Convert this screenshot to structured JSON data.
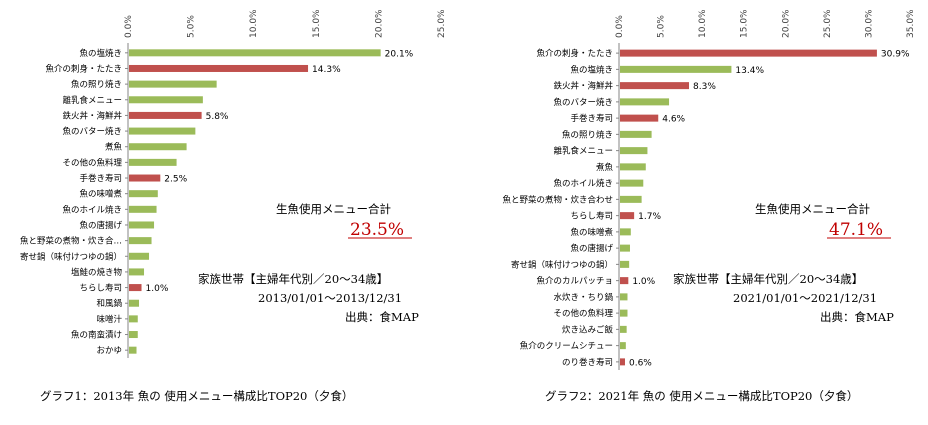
{
  "chart_data": [
    {
      "type": "bar",
      "orientation": "horizontal",
      "title": "グラフ1：2013年 魚の 使用メニュー構成比TOP20（夕食）",
      "xlim": [
        0,
        25
      ],
      "xticks": [
        "0.0%",
        "5.0%",
        "10.0%",
        "15.0%",
        "20.0%",
        "25.0%"
      ],
      "categories": [
        "魚の塩焼き",
        "魚介の刺身・たたき",
        "魚の照り焼き",
        "離乳食メニュー",
        "鉄火丼・海鮮丼",
        "魚のバター焼き",
        "煮魚",
        "その他の魚料理",
        "手巻き寿司",
        "魚の味噌煮",
        "魚のホイル焼き",
        "魚の唐揚げ",
        "魚と野菜の煮物・炊き合…",
        "寄せ鍋（味付けつゆの鍋）",
        "塩鮭の焼き物",
        "ちらし寿司",
        "和風鍋",
        "味噌汁",
        "魚の南蛮漬け",
        "おかゆ"
      ],
      "values": [
        20.1,
        14.3,
        7.0,
        5.9,
        5.8,
        5.3,
        4.6,
        3.8,
        2.5,
        2.3,
        2.2,
        2.0,
        1.8,
        1.6,
        1.2,
        1.0,
        0.8,
        0.7,
        0.7,
        0.6
      ],
      "highlight": [
        false,
        true,
        false,
        false,
        true,
        false,
        false,
        false,
        true,
        false,
        false,
        false,
        false,
        false,
        false,
        true,
        false,
        false,
        false,
        false
      ],
      "data_labels": [
        "20.1%",
        "14.3%",
        "",
        "",
        "5.8%",
        "",
        "",
        "",
        "2.5%",
        "",
        "",
        "",
        "",
        "",
        "",
        "1.0%",
        "",
        "",
        "",
        ""
      ],
      "annotation": {
        "total_label": "生魚使用メニュー合計",
        "total_value": "23.5%",
        "group": "家族世帯【主婦年代別／20～34歳】",
        "period": "2013/01/01～2013/12/31",
        "source": "出典：食MAP"
      },
      "colors": {
        "normal": "#9bbb59",
        "highlight": "#c0504d"
      }
    },
    {
      "type": "bar",
      "orientation": "horizontal",
      "title": "グラフ2：2021年 魚の 使用メニュー構成比TOP20（夕食）",
      "xlim": [
        0,
        35
      ],
      "xticks": [
        "0.0%",
        "5.0%",
        "10.0%",
        "15.0%",
        "20.0%",
        "25.0%",
        "30.0%",
        "35.0%"
      ],
      "categories": [
        "魚介の刺身・たたき",
        "魚の塩焼き",
        "鉄火丼・海鮮丼",
        "魚のバター焼き",
        "手巻き寿司",
        "魚の照り焼き",
        "離乳食メニュー",
        "煮魚",
        "魚のホイル焼き",
        "魚と野菜の煮物・炊き合わせ",
        "ちらし寿司",
        "魚の味噌煮",
        "魚の唐揚げ",
        "寄せ鍋（味付けつゆの鍋）",
        "魚介のカルパッチョ",
        "水炊き・ちり鍋",
        "その他の魚料理",
        "炊き込みご飯",
        "魚介のクリームシチュー",
        "のり巻き寿司"
      ],
      "values": [
        30.9,
        13.4,
        8.3,
        5.9,
        4.6,
        3.8,
        3.3,
        3.1,
        2.8,
        2.6,
        1.7,
        1.3,
        1.2,
        1.1,
        1.0,
        0.9,
        0.9,
        0.8,
        0.7,
        0.6
      ],
      "highlight": [
        true,
        false,
        true,
        false,
        true,
        false,
        false,
        false,
        false,
        false,
        true,
        false,
        false,
        false,
        true,
        false,
        false,
        false,
        false,
        true
      ],
      "data_labels": [
        "30.9%",
        "13.4%",
        "8.3%",
        "",
        "4.6%",
        "",
        "",
        "",
        "",
        "",
        "1.7%",
        "",
        "",
        "",
        "1.0%",
        "",
        "",
        "",
        "",
        "0.6%"
      ],
      "annotation": {
        "total_label": "生魚使用メニュー合計",
        "total_value": "47.1%",
        "group": "家族世帯【主婦年代別／20～34歳】",
        "period": "2021/01/01～2021/12/31",
        "source": "出典：食MAP"
      },
      "colors": {
        "normal": "#9bbb59",
        "highlight": "#c0504d"
      }
    }
  ]
}
